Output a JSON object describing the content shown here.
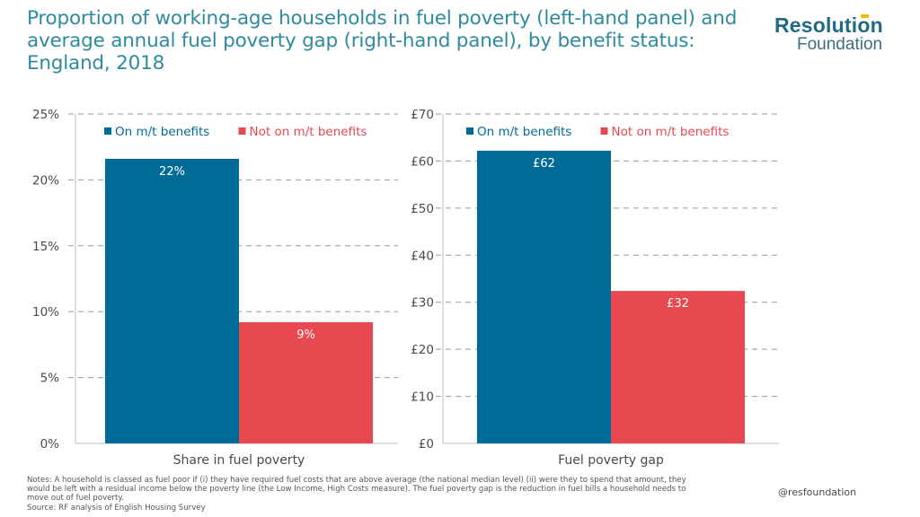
{
  "title": "Proportion of working-age households in fuel poverty (left-hand panel) and average annual fuel poverty gap (right-hand panel), by benefit status: England, 2018",
  "logo": {
    "top": "Resolution",
    "bottom": "Foundation"
  },
  "colors": {
    "on_benefits": "#006b96",
    "not_on_benefits": "#e8484f",
    "grid": "#9a9a9a",
    "axis": "#bfbfbf",
    "title": "#2e8a9f"
  },
  "chart_data": [
    {
      "type": "bar",
      "title": "",
      "xlabel": "Share in fuel poverty",
      "ylabel": "",
      "ylim": [
        0,
        25
      ],
      "yticks": [
        "0%",
        "5%",
        "10%",
        "15%",
        "20%",
        "25%"
      ],
      "ytick_values": [
        0,
        5,
        10,
        15,
        20,
        25
      ],
      "series": [
        {
          "name": "On m/t benefits",
          "values": [
            21.6
          ],
          "label": "22%"
        },
        {
          "name": "Not on m/t benefits",
          "values": [
            9.2
          ],
          "label": "9%"
        }
      ],
      "legend_placement": "top",
      "grid": true
    },
    {
      "type": "bar",
      "title": "",
      "xlabel": "Fuel poverty gap",
      "ylabel": "",
      "ylim": [
        0,
        70
      ],
      "yticks": [
        "£0",
        "£10",
        "£20",
        "£30",
        "£40",
        "£50",
        "£60",
        "£70"
      ],
      "ytick_values": [
        0,
        10,
        20,
        30,
        40,
        50,
        60,
        70
      ],
      "series": [
        {
          "name": "On m/t benefits",
          "values": [
            62.2
          ],
          "label": "£62"
        },
        {
          "name": "Not on m/t benefits",
          "values": [
            32.4
          ],
          "label": "£32"
        }
      ],
      "legend_placement": "top",
      "grid": true
    }
  ],
  "notes": {
    "line1": "Notes: A household is classed as fuel poor if (i) they have required fuel costs that are above average (the national median level) (ii) were they to spend that amount, they",
    "line2": "would be left with a residual income below the poverty line (the Low Income, High Costs measure). The fuel poverty gap is the reduction in fuel bills a household needs to",
    "line3": "move out of fuel poverty.",
    "source": "Source: RF analysis of English Housing Survey"
  },
  "handle": "@resfoundation"
}
